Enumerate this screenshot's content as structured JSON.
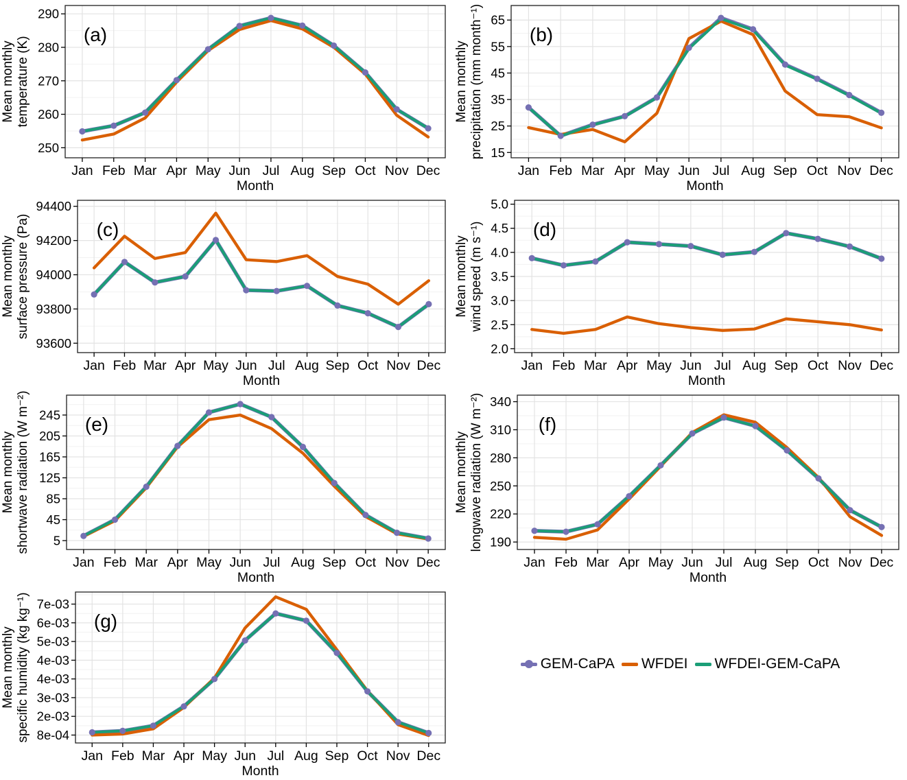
{
  "figure": {
    "legend": {
      "items": [
        {
          "label": "GEM-CaPA",
          "color": "#7570b3",
          "key": "line-circle"
        },
        {
          "label": "WFDEI",
          "color": "#d95f02",
          "key": "line"
        },
        {
          "label": "WFDEI-GEM-CaPA",
          "color": "#1b9e77",
          "key": "line"
        }
      ]
    },
    "colors": {
      "gem_capa": "#7570b3",
      "wfdei": "#d95f02",
      "wfdei_gem_capa": "#1b9e77",
      "grid_major": "#e3e3e3",
      "grid_minor": "#f2f2f2",
      "panel_border": "#1f1f1f",
      "text": "#000000"
    }
  },
  "chart_data": [
    {
      "id": "a",
      "type": "line",
      "panel_label": "(a)",
      "ylabel_lines": [
        "Mean monthly",
        "temperature (K)"
      ],
      "xlabel": "Month",
      "categories": [
        "Jan",
        "Feb",
        "Mar",
        "Apr",
        "May",
        "Jun",
        "Jul",
        "Aug",
        "Sep",
        "Oct",
        "Nov",
        "Dec"
      ],
      "yticks": [
        {
          "v": 250,
          "label": "250"
        },
        {
          "v": 260,
          "label": "260"
        },
        {
          "v": 270,
          "label": "270"
        },
        {
          "v": 280,
          "label": "280"
        },
        {
          "v": 290,
          "label": "290"
        }
      ],
      "ylim": [
        247,
        292.5
      ],
      "series": [
        {
          "name": "GEM-CaPA",
          "marker": "circle",
          "values": [
            254.9,
            256.6,
            260.5,
            270.2,
            279.4,
            286.4,
            288.8,
            286.5,
            280.5,
            272.5,
            261.5,
            255.8
          ]
        },
        {
          "name": "WFDEI",
          "marker": "none",
          "values": [
            252.3,
            254.1,
            258.9,
            269.6,
            279.0,
            285.3,
            288.0,
            285.5,
            280.0,
            272.0,
            259.7,
            253.2
          ]
        },
        {
          "name": "WFDEI-GEM-CaPA",
          "marker": "none",
          "values": [
            254.9,
            256.6,
            260.5,
            270.2,
            279.4,
            286.4,
            288.8,
            286.5,
            280.5,
            272.5,
            261.5,
            255.8
          ]
        }
      ]
    },
    {
      "id": "b",
      "type": "line",
      "panel_label": "(b)",
      "ylabel_lines": [
        "Mean monthly",
        "precipitation (mm month⁻¹)"
      ],
      "xlabel": "Month",
      "categories": [
        "Jan",
        "Feb",
        "Mar",
        "Apr",
        "May",
        "Jun",
        "Jul",
        "Aug",
        "Sep",
        "Oct",
        "Nov",
        "Dec"
      ],
      "yticks": [
        {
          "v": 15,
          "label": "15"
        },
        {
          "v": 25,
          "label": "25"
        },
        {
          "v": 35,
          "label": "35"
        },
        {
          "v": 45,
          "label": "45"
        },
        {
          "v": 55,
          "label": "55"
        },
        {
          "v": 65,
          "label": "65"
        }
      ],
      "ylim": [
        13,
        70.5
      ],
      "series": [
        {
          "name": "GEM-CaPA",
          "marker": "circle",
          "values": [
            32.0,
            21.3,
            25.5,
            28.7,
            35.8,
            54.5,
            65.8,
            61.5,
            48.2,
            42.8,
            36.7,
            30.0
          ]
        },
        {
          "name": "WFDEI",
          "marker": "none",
          "values": [
            24.4,
            21.8,
            23.7,
            19.0,
            29.8,
            58.0,
            64.6,
            59.5,
            38.2,
            29.3,
            28.5,
            24.3
          ]
        },
        {
          "name": "WFDEI-GEM-CaPA",
          "marker": "none",
          "values": [
            32.0,
            21.2,
            25.4,
            28.6,
            35.7,
            54.2,
            65.5,
            61.2,
            48.0,
            42.6,
            36.5,
            29.8
          ]
        }
      ]
    },
    {
      "id": "c",
      "type": "line",
      "panel_label": "(c)",
      "ylabel_lines": [
        "Mean monthly",
        "surface pressure (Pa)"
      ],
      "xlabel": "Month",
      "categories": [
        "Jan",
        "Feb",
        "Mar",
        "Apr",
        "May",
        "Jun",
        "Jul",
        "Aug",
        "Sep",
        "Oct",
        "Nov",
        "Dec"
      ],
      "yticks": [
        {
          "v": 93600,
          "label": "93600"
        },
        {
          "v": 93800,
          "label": "93800"
        },
        {
          "v": 94000,
          "label": "94000"
        },
        {
          "v": 94200,
          "label": "94200"
        },
        {
          "v": 94400,
          "label": "94400"
        }
      ],
      "ylim": [
        93545,
        94435
      ],
      "series": [
        {
          "name": "GEM-CaPA",
          "marker": "circle",
          "values": [
            93885,
            94075,
            93955,
            93990,
            94203,
            93910,
            93905,
            93935,
            93820,
            93775,
            93695,
            93828
          ]
        },
        {
          "name": "WFDEI",
          "marker": "none",
          "values": [
            94040,
            94225,
            94095,
            94130,
            94360,
            94088,
            94077,
            94112,
            93990,
            93945,
            93828,
            93965
          ]
        },
        {
          "name": "WFDEI-GEM-CaPA",
          "marker": "none",
          "values": [
            93885,
            94075,
            93955,
            93990,
            94203,
            93910,
            93905,
            93935,
            93820,
            93775,
            93695,
            93828
          ]
        }
      ]
    },
    {
      "id": "d",
      "type": "line",
      "panel_label": "(d)",
      "ylabel_lines": [
        "Mean monthly",
        "wind speed (m s⁻¹)"
      ],
      "xlabel": "Month",
      "categories": [
        "Jan",
        "Feb",
        "Mar",
        "Apr",
        "May",
        "Jun",
        "Jul",
        "Aug",
        "Sep",
        "Oct",
        "Nov",
        "Dec"
      ],
      "yticks": [
        {
          "v": 2.0,
          "label": "2.0"
        },
        {
          "v": 2.5,
          "label": "2.5"
        },
        {
          "v": 3.0,
          "label": "3.0"
        },
        {
          "v": 3.5,
          "label": "3.5"
        },
        {
          "v": 4.0,
          "label": "4.0"
        },
        {
          "v": 4.5,
          "label": "4.5"
        },
        {
          "v": 5.0,
          "label": "5.0"
        }
      ],
      "ylim": [
        1.92,
        5.08
      ],
      "series": [
        {
          "name": "GEM-CaPA",
          "marker": "circle",
          "values": [
            3.88,
            3.73,
            3.81,
            4.21,
            4.17,
            4.13,
            3.95,
            4.01,
            4.4,
            4.28,
            4.12,
            3.87
          ]
        },
        {
          "name": "WFDEI",
          "marker": "none",
          "values": [
            2.4,
            2.32,
            2.4,
            2.66,
            2.52,
            2.44,
            2.38,
            2.41,
            2.62,
            2.56,
            2.5,
            2.39
          ]
        },
        {
          "name": "WFDEI-GEM-CaPA",
          "marker": "none",
          "values": [
            3.88,
            3.73,
            3.81,
            4.21,
            4.17,
            4.13,
            3.95,
            4.01,
            4.4,
            4.28,
            4.12,
            3.87
          ]
        }
      ]
    },
    {
      "id": "e",
      "type": "line",
      "panel_label": "(e)",
      "ylabel_lines": [
        "Mean monthly",
        "shortwave radiation (W m⁻²)"
      ],
      "xlabel": "Month",
      "categories": [
        "Jan",
        "Feb",
        "Mar",
        "Apr",
        "May",
        "Jun",
        "Jul",
        "Aug",
        "Sep",
        "Oct",
        "Nov",
        "Dec"
      ],
      "yticks": [
        {
          "v": 5,
          "label": "5"
        },
        {
          "v": 45,
          "label": "45"
        },
        {
          "v": 85,
          "label": "85"
        },
        {
          "v": 125,
          "label": "125"
        },
        {
          "v": 165,
          "label": "165"
        },
        {
          "v": 205,
          "label": "205"
        },
        {
          "v": 245,
          "label": "245"
        }
      ],
      "ylim": [
        -12,
        283
      ],
      "series": [
        {
          "name": "GEM-CaPA",
          "marker": "circle",
          "values": [
            14,
            45,
            108,
            186,
            250,
            266,
            241,
            184,
            115,
            54,
            20,
            9
          ]
        },
        {
          "name": "WFDEI",
          "marker": "none",
          "values": [
            13,
            43,
            106,
            184,
            236,
            245,
            219,
            172,
            109,
            51,
            18,
            8
          ]
        },
        {
          "name": "WFDEI-GEM-CaPA",
          "marker": "none",
          "values": [
            14,
            45,
            108,
            186,
            250,
            266,
            241,
            184,
            115,
            54,
            20,
            9
          ]
        }
      ]
    },
    {
      "id": "f",
      "type": "line",
      "panel_label": "(f)",
      "ylabel_lines": [
        "Mean monthly",
        "longwave radiation (W m⁻²)"
      ],
      "xlabel": "Month",
      "categories": [
        "Jan",
        "Feb",
        "Mar",
        "Apr",
        "May",
        "Jun",
        "Jul",
        "Aug",
        "Sep",
        "Oct",
        "Nov",
        "Dec"
      ],
      "yticks": [
        {
          "v": 190,
          "label": "190"
        },
        {
          "v": 220,
          "label": "220"
        },
        {
          "v": 250,
          "label": "250"
        },
        {
          "v": 280,
          "label": "280"
        },
        {
          "v": 310,
          "label": "310"
        },
        {
          "v": 340,
          "label": "340"
        }
      ],
      "ylim": [
        182,
        347
      ],
      "series": [
        {
          "name": "GEM-CaPA",
          "marker": "circle",
          "values": [
            202,
            201,
            209,
            239,
            272,
            306,
            323,
            314,
            288,
            258,
            224,
            206
          ]
        },
        {
          "name": "WFDEI",
          "marker": "none",
          "values": [
            195,
            193,
            203,
            236,
            271,
            307,
            326,
            318,
            291,
            259,
            217,
            197
          ]
        },
        {
          "name": "WFDEI-GEM-CaPA",
          "marker": "none",
          "values": [
            202,
            201,
            209,
            239,
            272,
            306,
            323,
            314,
            288,
            258,
            224,
            206
          ]
        }
      ]
    },
    {
      "id": "g",
      "type": "line",
      "panel_label": "(g)",
      "ylabel_lines": [
        "Mean monthly",
        "specific humidity (kg kg⁻¹)"
      ],
      "xlabel": "Month",
      "categories": [
        "Jan",
        "Feb",
        "Mar",
        "Apr",
        "May",
        "Jun",
        "Jul",
        "Aug",
        "Sep",
        "Oct",
        "Nov",
        "Dec"
      ],
      "yticks": [
        {
          "v": 0.0008,
          "label": "8e-04"
        },
        {
          "v": 0.0017,
          "label": "2e-03"
        },
        {
          "v": 0.0026,
          "label": "3e-03"
        },
        {
          "v": 0.0035,
          "label": "4e-03"
        },
        {
          "v": 0.0044,
          "label": "4e-03"
        },
        {
          "v": 0.0053,
          "label": "5e-03"
        },
        {
          "v": 0.0062,
          "label": "6e-03"
        },
        {
          "v": 0.0071,
          "label": "7e-03"
        }
      ],
      "ylim": [
        0.00042,
        0.00768
      ],
      "series": [
        {
          "name": "GEM-CaPA",
          "marker": "circle",
          "values": [
            0.00093,
            0.001,
            0.00125,
            0.00218,
            0.0035,
            0.00535,
            0.00665,
            0.0063,
            0.00475,
            0.0029,
            0.00142,
            0.0009
          ]
        },
        {
          "name": "WFDEI",
          "marker": "none",
          "values": [
            0.0008,
            0.00085,
            0.0011,
            0.00213,
            0.00355,
            0.00595,
            0.00745,
            0.00685,
            0.0049,
            0.00292,
            0.0013,
            0.00078
          ]
        },
        {
          "name": "WFDEI-GEM-CaPA",
          "marker": "none",
          "values": [
            0.00093,
            0.001,
            0.00125,
            0.00218,
            0.0035,
            0.00535,
            0.00665,
            0.0063,
            0.00475,
            0.0029,
            0.00142,
            0.0009
          ]
        }
      ]
    }
  ]
}
